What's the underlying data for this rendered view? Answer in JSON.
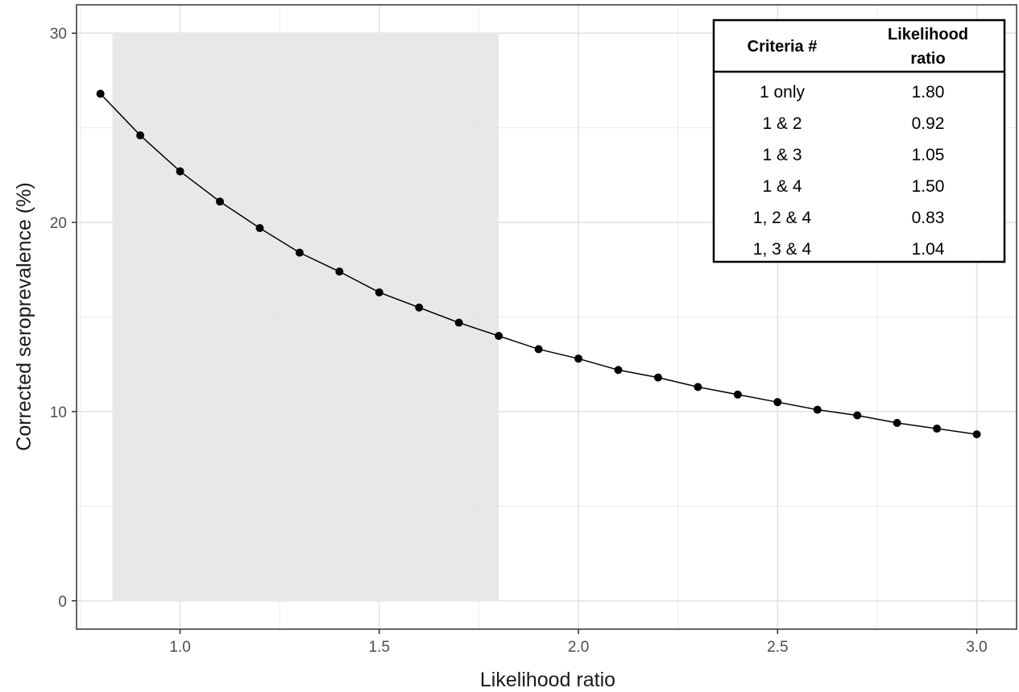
{
  "chart_data": {
    "type": "line",
    "xlabel": "Likelihood ratio",
    "ylabel": "Corrected seroprevalence (%)",
    "xlim": [
      0.74,
      3.1
    ],
    "ylim": [
      -1.5,
      31.5
    ],
    "x_ticks": [
      1.0,
      1.5,
      2.0,
      2.5,
      3.0
    ],
    "x_tick_labels": [
      "1.0",
      "1.5",
      "2.0",
      "2.5",
      "3.0"
    ],
    "y_ticks": [
      0,
      10,
      20,
      30
    ],
    "y_tick_labels": [
      "0",
      "10",
      "20",
      "30"
    ],
    "grid": true,
    "shaded_region": {
      "x": [
        0.83,
        1.8
      ],
      "y": [
        0,
        30
      ],
      "color": "#e5e5e5"
    },
    "series": [
      {
        "x": [
          0.8,
          0.9,
          1.0,
          1.1,
          1.2,
          1.3,
          1.4,
          1.5,
          1.6,
          1.7,
          1.8,
          1.9,
          2.0,
          2.1,
          2.2,
          2.3,
          2.4,
          2.5,
          2.6,
          2.7,
          2.8,
          2.9,
          3.0
        ],
        "y": [
          26.8,
          24.6,
          22.7,
          21.1,
          19.7,
          18.4,
          17.4,
          16.3,
          15.5,
          14.7,
          14.0,
          13.3,
          12.8,
          12.2,
          11.8,
          11.3,
          10.9,
          10.5,
          10.1,
          9.8,
          9.4,
          9.1,
          8.8
        ],
        "color": "#000000"
      }
    ],
    "inset_table": {
      "position": "top-right",
      "headers": [
        "Criteria #",
        "Likelihood",
        "ratio"
      ],
      "rows": [
        [
          "1 only",
          "1.80"
        ],
        [
          "1 & 2",
          "0.92"
        ],
        [
          "1 & 3",
          "1.05"
        ],
        [
          "1 & 4",
          "1.50"
        ],
        [
          "1, 2 & 4",
          "0.83"
        ],
        [
          "1, 3 & 4",
          "1.04"
        ]
      ]
    }
  }
}
